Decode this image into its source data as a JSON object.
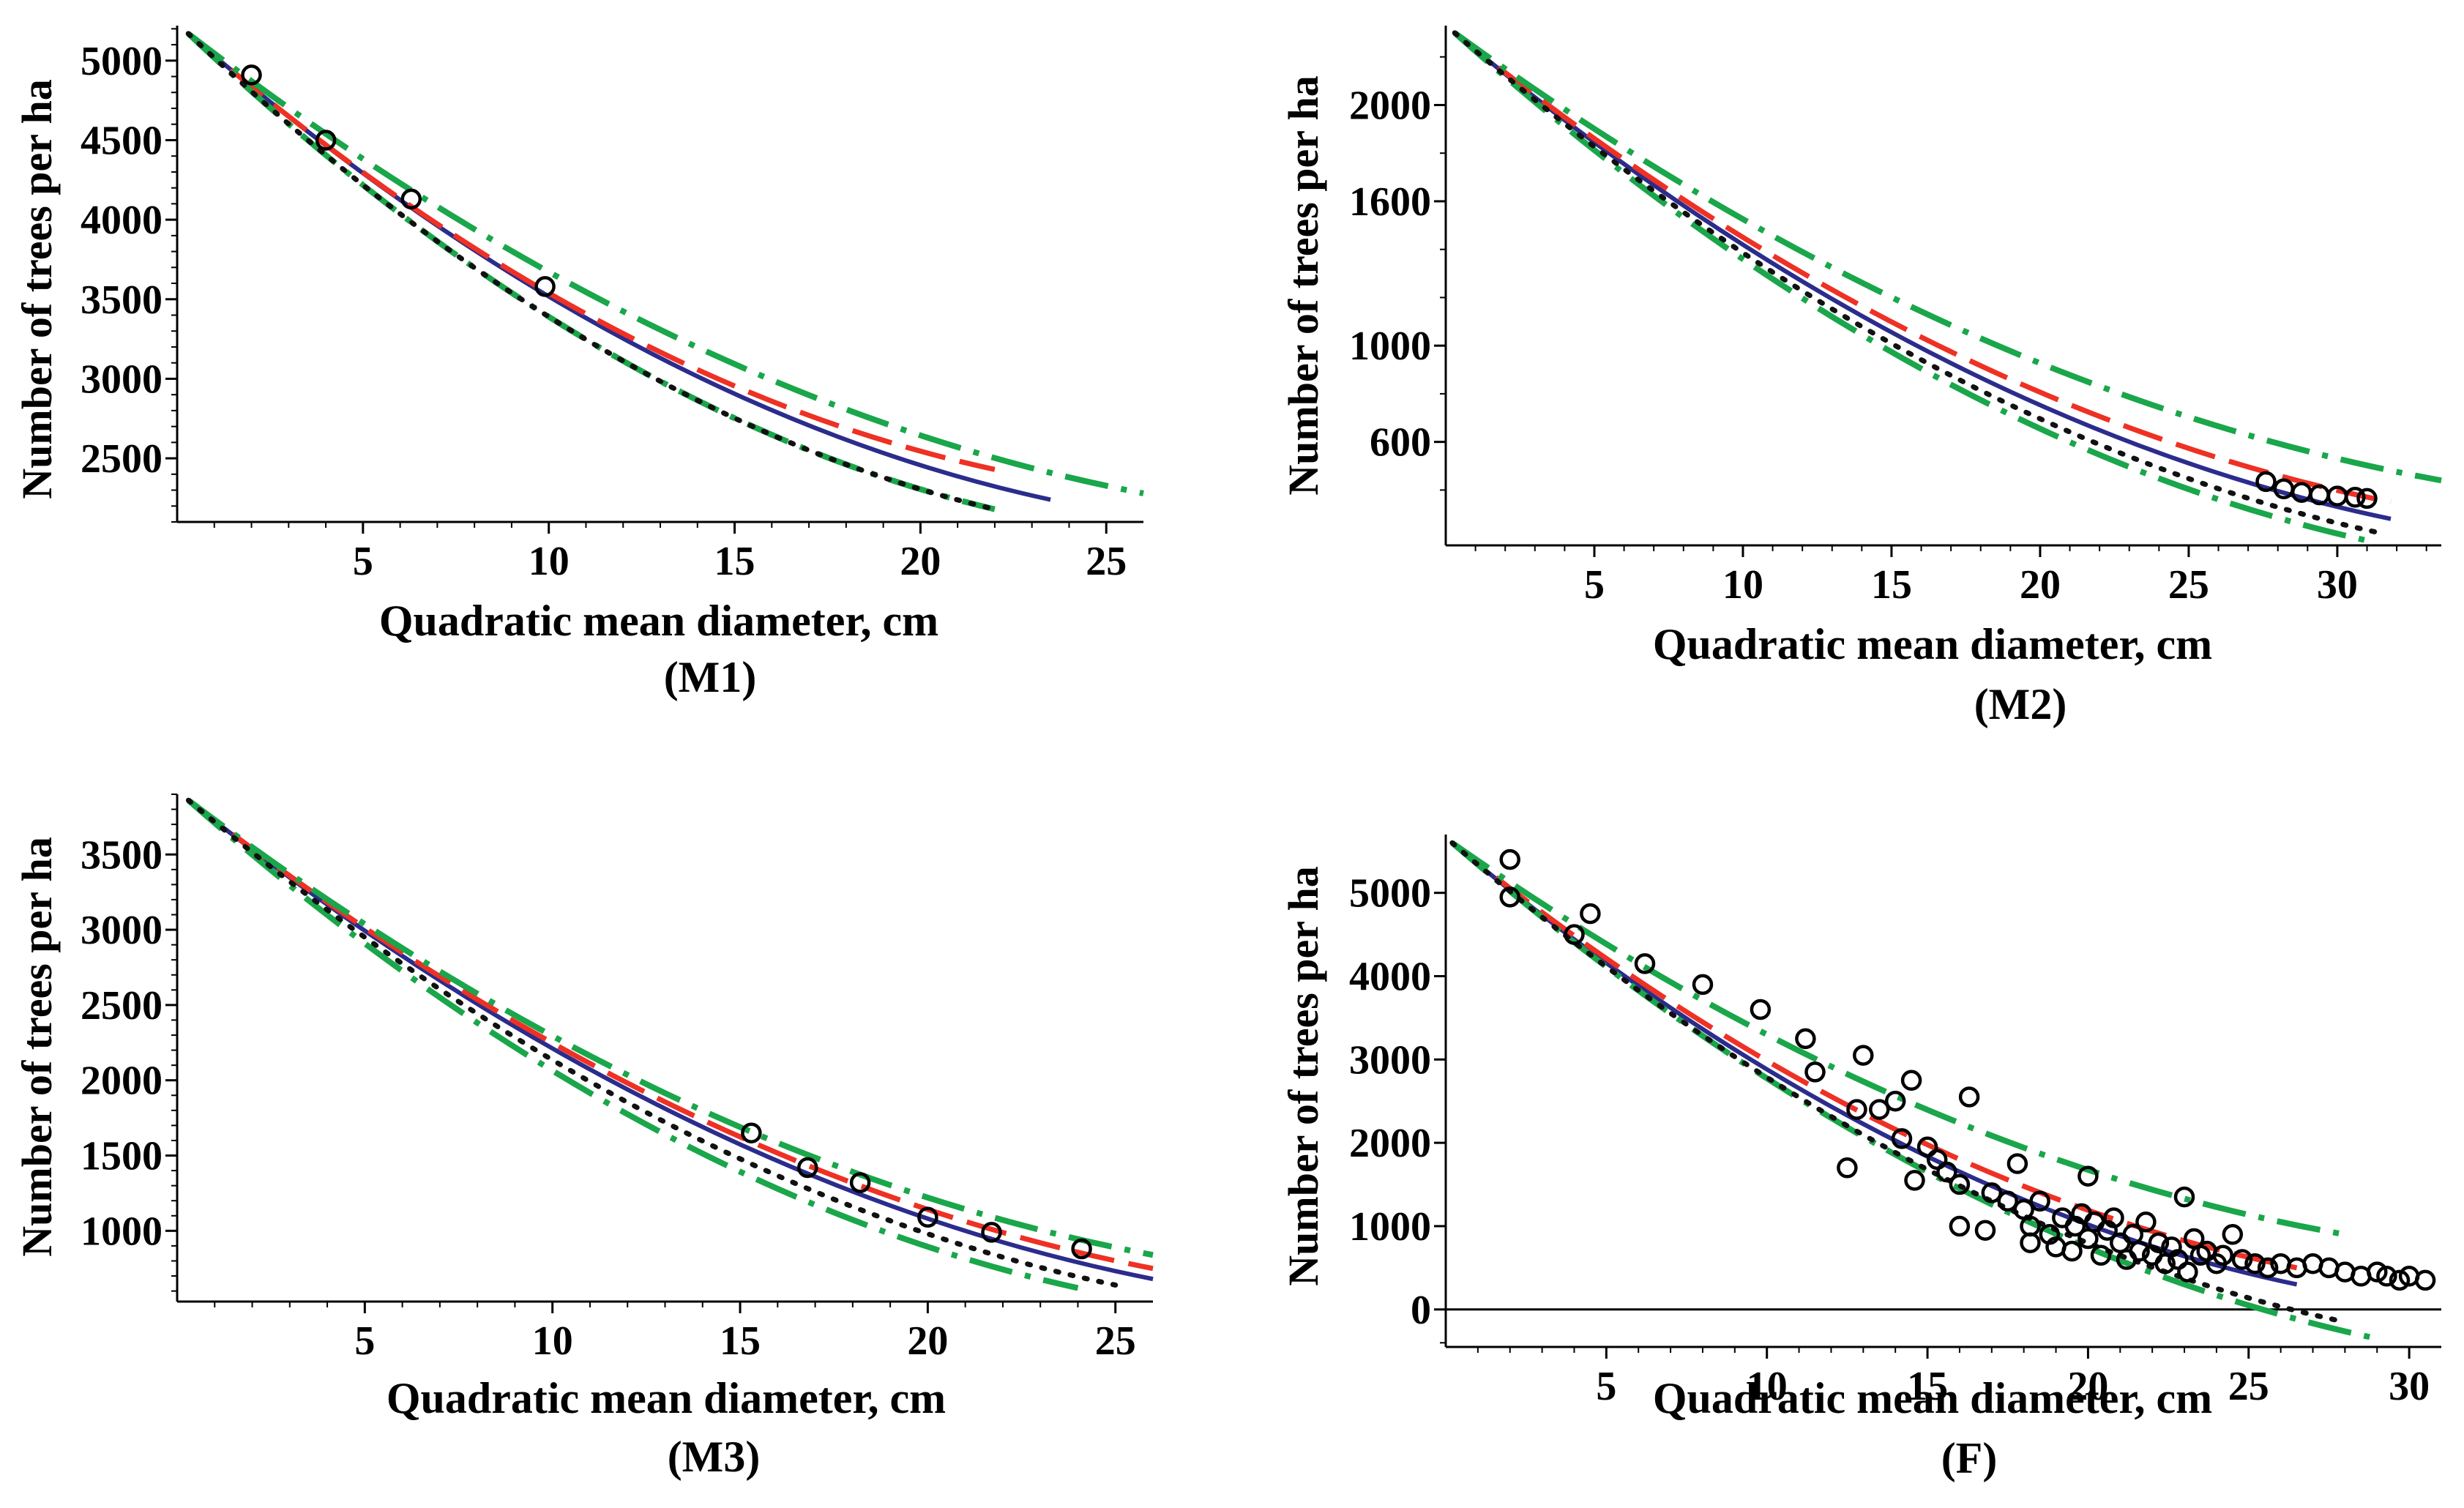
{
  "colors": {
    "observed": "#000000",
    "blue": "#2b2c8c",
    "red": "#ee3124",
    "green": "#1aa64a",
    "dotted": "#111111"
  },
  "chart_data": [
    {
      "id": "M1",
      "type": "line",
      "caption": "(M1)",
      "xlabel": "Quadratic mean diameter, cm",
      "ylabel": "Number of trees per ha",
      "xlim": [
        0,
        26
      ],
      "ylim": [
        2100,
        5220
      ],
      "xticks": [
        5,
        10,
        15,
        20,
        25
      ],
      "yticks": [
        2500,
        3000,
        3500,
        4000,
        4500,
        5000
      ],
      "yminor": [],
      "x_start": 0.3,
      "y_start": 5170,
      "series": [
        {
          "name": "blue-solid",
          "style": "solid",
          "color": "#2b2c8c",
          "x_end": 23.5,
          "y_end": 2240
        },
        {
          "name": "red-dashed",
          "style": "dashed",
          "color": "#ee3124",
          "x_end": 22.0,
          "y_end": 2430
        },
        {
          "name": "green-upper",
          "style": "dashdot",
          "color": "#1aa64a",
          "x_end": 26.0,
          "y_end": 2280
        },
        {
          "name": "green-lower",
          "style": "dashdot",
          "color": "#1aa64a",
          "x_end": 22.0,
          "y_end": 2180
        },
        {
          "name": "black-dotted",
          "style": "dotted",
          "color": "#111111",
          "x_end": 22.0,
          "y_end": 2180
        }
      ],
      "points": [
        [
          2.0,
          4910
        ],
        [
          4.0,
          4500
        ],
        [
          6.3,
          4130
        ],
        [
          9.9,
          3580
        ]
      ]
    },
    {
      "id": "M2",
      "type": "line",
      "caption": "(M2)",
      "xlabel": "Quadratic mean diameter, cm",
      "ylabel": "Number of trees per ha",
      "xlim": [
        0,
        33.5
      ],
      "ylim": [
        170,
        2330
      ],
      "xticks": [
        5,
        10,
        15,
        20,
        25,
        30
      ],
      "yticks": [
        600,
        1000,
        1600,
        2000
      ],
      "yminor": [
        400,
        800,
        1200,
        1400,
        1800,
        2200
      ],
      "x_start": 0.3,
      "y_start": 2300,
      "series": [
        {
          "name": "blue-solid",
          "style": "solid",
          "color": "#2b2c8c",
          "x_end": 31.8,
          "y_end": 280
        },
        {
          "name": "red-dashed",
          "style": "dashed",
          "color": "#ee3124",
          "x_end": 31.8,
          "y_end": 350
        },
        {
          "name": "green-upper",
          "style": "dashdot",
          "color": "#1aa64a",
          "x_end": 33.5,
          "y_end": 440
        },
        {
          "name": "green-lower",
          "style": "dashdot",
          "color": "#1aa64a",
          "x_end": 31.0,
          "y_end": 190
        },
        {
          "name": "black-dotted",
          "style": "dotted",
          "color": "#111111",
          "x_end": 31.5,
          "y_end": 220
        }
      ],
      "points": [
        [
          27.6,
          435
        ],
        [
          28.2,
          405
        ],
        [
          28.8,
          390
        ],
        [
          29.4,
          380
        ],
        [
          30.0,
          375
        ],
        [
          30.6,
          370
        ],
        [
          31.0,
          365
        ]
      ]
    },
    {
      "id": "M3",
      "type": "line",
      "caption": "(M3)",
      "xlabel": "Quadratic mean diameter, cm",
      "ylabel": "Number of trees per ha",
      "xlim": [
        0,
        26
      ],
      "ylim": [
        530,
        3900
      ],
      "xticks": [
        5,
        10,
        15,
        20,
        25
      ],
      "yticks": [
        1000,
        1500,
        2000,
        2500,
        3000,
        3500
      ],
      "yminor": [],
      "x_start": 0.3,
      "y_start": 3860,
      "series": [
        {
          "name": "blue-solid",
          "style": "solid",
          "color": "#2b2c8c",
          "x_end": 26.0,
          "y_end": 680
        },
        {
          "name": "red-dashed",
          "style": "dashed",
          "color": "#ee3124",
          "x_end": 26.0,
          "y_end": 750
        },
        {
          "name": "green-upper",
          "style": "dashdot",
          "color": "#1aa64a",
          "x_end": 26.0,
          "y_end": 840
        },
        {
          "name": "green-lower",
          "style": "dashdot",
          "color": "#1aa64a",
          "x_end": 24.0,
          "y_end": 620
        },
        {
          "name": "black-dotted",
          "style": "dotted",
          "color": "#111111",
          "x_end": 25.0,
          "y_end": 640
        }
      ],
      "points": [
        [
          15.3,
          1650
        ],
        [
          16.8,
          1420
        ],
        [
          18.2,
          1320
        ],
        [
          20.0,
          1090
        ],
        [
          21.7,
          990
        ],
        [
          24.1,
          880
        ]
      ]
    },
    {
      "id": "F",
      "type": "line",
      "caption": "(F)",
      "xlabel": "Quadratic mean diameter, cm",
      "ylabel": "Number of trees per ha",
      "xlim": [
        0,
        31
      ],
      "ylim": [
        -450,
        5700
      ],
      "xticks": [
        5,
        10,
        15,
        20,
        25,
        30
      ],
      "yticks": [
        0,
        1000,
        2000,
        3000,
        4000,
        5000
      ],
      "yminor": [
        -400
      ],
      "x_start": 0.2,
      "y_start": 5600,
      "series": [
        {
          "name": "blue-solid",
          "style": "solid",
          "color": "#2b2c8c",
          "x_end": 26.5,
          "y_end": 300
        },
        {
          "name": "red-dashed",
          "style": "dashed",
          "color": "#ee3124",
          "x_end": 26.5,
          "y_end": 500
        },
        {
          "name": "green-upper",
          "style": "dashdot",
          "color": "#1aa64a",
          "x_end": 28.0,
          "y_end": 900
        },
        {
          "name": "green-lower",
          "style": "dashdot",
          "color": "#1aa64a",
          "x_end": 29.0,
          "y_end": -350
        },
        {
          "name": "black-dotted",
          "style": "dotted",
          "color": "#111111",
          "x_end": 28.0,
          "y_end": -150
        }
      ],
      "points": [
        [
          2.0,
          5400
        ],
        [
          2.0,
          4950
        ],
        [
          4.0,
          4500
        ],
        [
          4.5,
          4750
        ],
        [
          6.2,
          4150
        ],
        [
          8.0,
          3900
        ],
        [
          9.8,
          3600
        ],
        [
          11.2,
          3250
        ],
        [
          11.5,
          2850
        ],
        [
          12.5,
          1700
        ],
        [
          13.0,
          3050
        ],
        [
          12.8,
          2400
        ],
        [
          13.5,
          2400
        ],
        [
          14.0,
          2500
        ],
        [
          14.5,
          2750
        ],
        [
          14.2,
          2050
        ],
        [
          14.6,
          1550
        ],
        [
          15.0,
          1950
        ],
        [
          15.3,
          1800
        ],
        [
          15.6,
          1650
        ],
        [
          16.0,
          1500
        ],
        [
          16.3,
          2550
        ],
        [
          16.0,
          1000
        ],
        [
          16.8,
          950
        ],
        [
          17.0,
          1400
        ],
        [
          17.5,
          1300
        ],
        [
          17.8,
          1750
        ],
        [
          18.0,
          1200
        ],
        [
          18.2,
          1000
        ],
        [
          18.5,
          1300
        ],
        [
          18.2,
          800
        ],
        [
          18.8,
          900
        ],
        [
          19.0,
          750
        ],
        [
          19.2,
          1100
        ],
        [
          19.5,
          700
        ],
        [
          19.6,
          1000
        ],
        [
          19.8,
          1150
        ],
        [
          20.0,
          850
        ],
        [
          20.0,
          1600
        ],
        [
          20.2,
          1050
        ],
        [
          20.4,
          650
        ],
        [
          20.6,
          950
        ],
        [
          20.8,
          1100
        ],
        [
          21.0,
          800
        ],
        [
          21.2,
          600
        ],
        [
          21.4,
          900
        ],
        [
          21.6,
          700
        ],
        [
          21.8,
          1050
        ],
        [
          22.0,
          650
        ],
        [
          22.2,
          800
        ],
        [
          22.4,
          550
        ],
        [
          22.6,
          750
        ],
        [
          22.8,
          600
        ],
        [
          23.0,
          1350
        ],
        [
          23.1,
          450
        ],
        [
          23.3,
          850
        ],
        [
          23.5,
          650
        ],
        [
          23.7,
          700
        ],
        [
          24.0,
          550
        ],
        [
          24.2,
          650
        ],
        [
          24.5,
          900
        ],
        [
          24.8,
          600
        ],
        [
          25.2,
          550
        ],
        [
          25.6,
          500
        ],
        [
          26.0,
          550
        ],
        [
          26.5,
          500
        ],
        [
          27.0,
          550
        ],
        [
          27.5,
          500
        ],
        [
          28.0,
          450
        ],
        [
          28.5,
          400
        ],
        [
          29.0,
          450
        ],
        [
          29.3,
          400
        ],
        [
          29.7,
          350
        ],
        [
          30.0,
          400
        ],
        [
          30.5,
          350
        ]
      ]
    }
  ]
}
